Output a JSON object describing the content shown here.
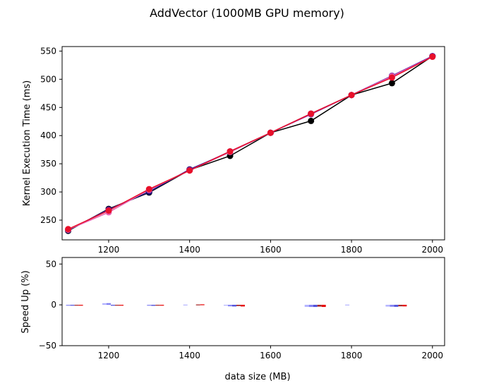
{
  "chart_data": [
    {
      "type": "line",
      "title": "AddVector (1000MB GPU memory)",
      "xlabel": "",
      "ylabel": "Kernel Execution Time (ms)",
      "xlim": [
        1085,
        2030
      ],
      "ylim": [
        215,
        558
      ],
      "xticks": [
        1200,
        1400,
        1600,
        1800,
        2000
      ],
      "yticks": [
        250,
        300,
        350,
        400,
        450,
        500,
        550
      ],
      "grid": false,
      "x": [
        1100,
        1200,
        1300,
        1400,
        1500,
        1600,
        1700,
        1800,
        1900,
        2000
      ],
      "series": [
        {
          "color": "#000000",
          "values": [
            231,
            270,
            299,
            339,
            364,
            405,
            426,
            472,
            493,
            541
          ]
        },
        {
          "color": "#1a0f6e",
          "values": [
            232,
            269,
            300,
            340,
            371,
            405,
            439,
            472,
            506,
            541
          ]
        },
        {
          "color": "#7a1fa8",
          "values": [
            233,
            268,
            303,
            339,
            372,
            405,
            438,
            472,
            506,
            541
          ]
        },
        {
          "color": "#e862b0",
          "values": [
            233,
            264,
            304,
            338,
            371,
            405,
            439,
            472,
            505,
            540
          ]
        },
        {
          "color": "#e8102a",
          "values": [
            234,
            267,
            305,
            338,
            372,
            405,
            439,
            472,
            503,
            540
          ]
        }
      ]
    },
    {
      "type": "bar",
      "xlabel": "data size (MB)",
      "ylabel": "Speed Up (%)",
      "xlim": [
        1085,
        2030
      ],
      "ylim": [
        -50,
        58
      ],
      "xticks": [
        1200,
        1400,
        1600,
        1800,
        2000
      ],
      "yticks": [
        -50,
        0,
        50
      ],
      "grid": false,
      "x": [
        1100,
        1200,
        1300,
        1400,
        1500,
        1600,
        1700,
        1800,
        1900,
        2000
      ],
      "series": [
        {
          "color": "#b3b3ff",
          "values": [
            0.0,
            2.0,
            0.0,
            0.3,
            -0.8,
            0.0,
            -2.5,
            0.3,
            -2.2,
            0.0
          ]
        },
        {
          "color": "#8080f2",
          "values": [
            -0.4,
            2.1,
            -0.5,
            0.0,
            -1.8,
            0.0,
            -2.6,
            0.0,
            -2.3,
            0.0
          ]
        },
        {
          "color": "#4d4dd9",
          "values": [
            -0.3,
            -0.5,
            -1.2,
            0.0,
            -2.0,
            0.0,
            -2.6,
            0.0,
            -2.4,
            0.0
          ]
        },
        {
          "color": "#a32020",
          "values": [
            -0.2,
            -0.4,
            -0.6,
            0.5,
            -1.5,
            0.0,
            -2.2,
            0.0,
            -1.8,
            0.0
          ]
        },
        {
          "color": "#e60000",
          "values": [
            -0.4,
            -0.3,
            -0.8,
            0.6,
            -2.0,
            0.0,
            -2.6,
            0.0,
            -1.9,
            0.0
          ]
        }
      ]
    }
  ]
}
